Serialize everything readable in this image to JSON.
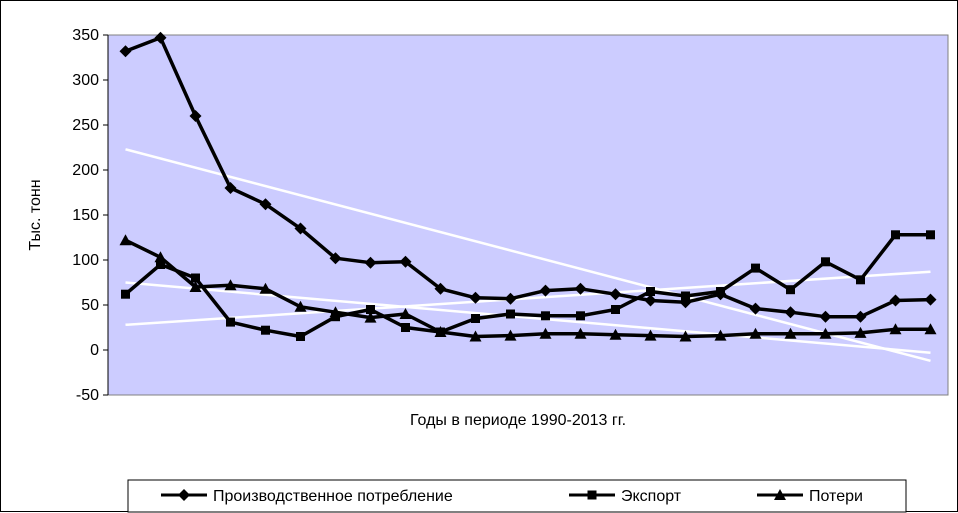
{
  "chart_data": {
    "type": "line",
    "title": "",
    "xlabel": "Годы в периоде 1990-2013 гг.",
    "ylabel": "Тыс. тонн",
    "ylim": [
      -50,
      350
    ],
    "yticks": [
      350,
      300,
      250,
      200,
      150,
      100,
      50,
      0,
      -50
    ],
    "x_count": 24,
    "grid": false,
    "plot_background": "#ccccff",
    "legend_position": "bottom",
    "series": [
      {
        "name": "Производственное потребление",
        "marker": "diamond",
        "color": "#000000",
        "values": [
          332,
          347,
          260,
          180,
          162,
          135,
          102,
          97,
          98,
          68,
          58,
          57,
          66,
          68,
          62,
          55,
          53,
          62,
          46,
          42,
          37,
          37,
          55,
          56
        ]
      },
      {
        "name": "Экспорт",
        "marker": "square",
        "color": "#000000",
        "values": [
          62,
          95,
          80,
          31,
          22,
          15,
          37,
          45,
          25,
          20,
          35,
          40,
          38,
          38,
          45,
          65,
          60,
          65,
          91,
          67,
          98,
          78,
          128,
          128
        ]
      },
      {
        "name": "Потери",
        "marker": "triangle",
        "color": "#000000",
        "values": [
          122,
          103,
          70,
          72,
          68,
          48,
          42,
          36,
          40,
          20,
          15,
          16,
          18,
          18,
          17,
          16,
          15,
          16,
          18,
          18,
          18,
          19,
          23,
          23
        ]
      }
    ],
    "trendlines": [
      {
        "color": "#ffffff",
        "start": 223,
        "end": -12
      },
      {
        "color": "#ffffff",
        "start": 28,
        "end": 87
      },
      {
        "color": "#ffffff",
        "start": 75,
        "end": -3
      }
    ]
  }
}
